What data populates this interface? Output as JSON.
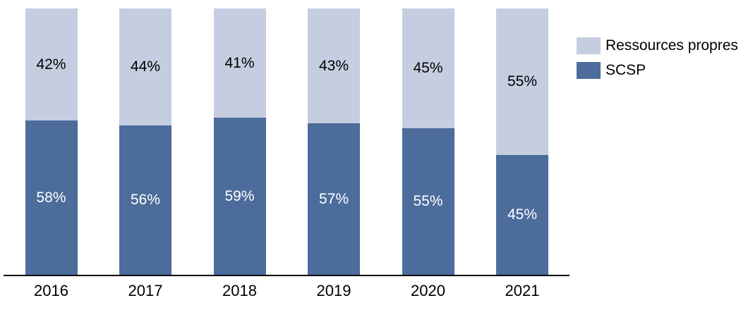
{
  "chart_data": {
    "type": "bar",
    "variant": "stacked-column-100",
    "title": "",
    "xlabel": "",
    "ylabel": "",
    "ylim": [
      0,
      100
    ],
    "grid": false,
    "value_suffix": "%",
    "categories": [
      "2016",
      "2017",
      "2018",
      "2019",
      "2020",
      "2021"
    ],
    "series": [
      {
        "name": "SCSP",
        "color": "#4C6C9C",
        "label_color": "#FFFFFF",
        "values": [
          58,
          56,
          59,
          57,
          55,
          45
        ],
        "labels": [
          "58%",
          "56%",
          "59%",
          "57%",
          "55%",
          "45%"
        ]
      },
      {
        "name": "Ressources propres",
        "color": "#C5CEE0",
        "label_color": "#000000",
        "values": [
          42,
          44,
          41,
          43,
          45,
          55
        ],
        "labels": [
          "42%",
          "44%",
          "41%",
          "43%",
          "45%",
          "55%"
        ]
      }
    ],
    "legend": {
      "position": "top-right",
      "entries": [
        {
          "label": "Ressources propres",
          "color": "#C5CEE0"
        },
        {
          "label": "SCSP",
          "color": "#4C6C9C"
        }
      ]
    },
    "axis_line_color": "#000000"
  }
}
